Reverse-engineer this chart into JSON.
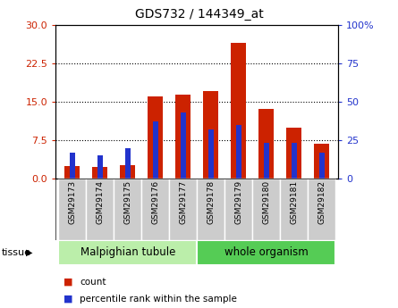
{
  "title": "GDS732 / 144349_at",
  "categories": [
    "GSM29173",
    "GSM29174",
    "GSM29175",
    "GSM29176",
    "GSM29177",
    "GSM29178",
    "GSM29179",
    "GSM29180",
    "GSM29181",
    "GSM29182"
  ],
  "count_values": [
    2.5,
    2.2,
    2.6,
    16.0,
    16.3,
    17.0,
    26.5,
    13.5,
    10.0,
    6.8
  ],
  "percentile_values": [
    17,
    15,
    20,
    37,
    43,
    32,
    35,
    23,
    23,
    17
  ],
  "ylim_left": [
    0,
    30
  ],
  "ylim_right": [
    0,
    100
  ],
  "yticks_left": [
    0,
    7.5,
    15,
    22.5,
    30
  ],
  "yticks_right": [
    0,
    25,
    50,
    75,
    100
  ],
  "bar_color": "#cc2200",
  "percentile_color": "#2233cc",
  "tissue_groups": [
    {
      "label": "Malpighian tubule",
      "indices": [
        0,
        1,
        2,
        3,
        4
      ],
      "color": "#bbeeaa"
    },
    {
      "label": "whole organism",
      "indices": [
        5,
        6,
        7,
        8,
        9
      ],
      "color": "#55cc55"
    }
  ],
  "bar_width": 0.55,
  "blue_bar_width": 0.2,
  "tick_bg": "#cccccc",
  "label_fontsize": 6.5,
  "title_fontsize": 10
}
